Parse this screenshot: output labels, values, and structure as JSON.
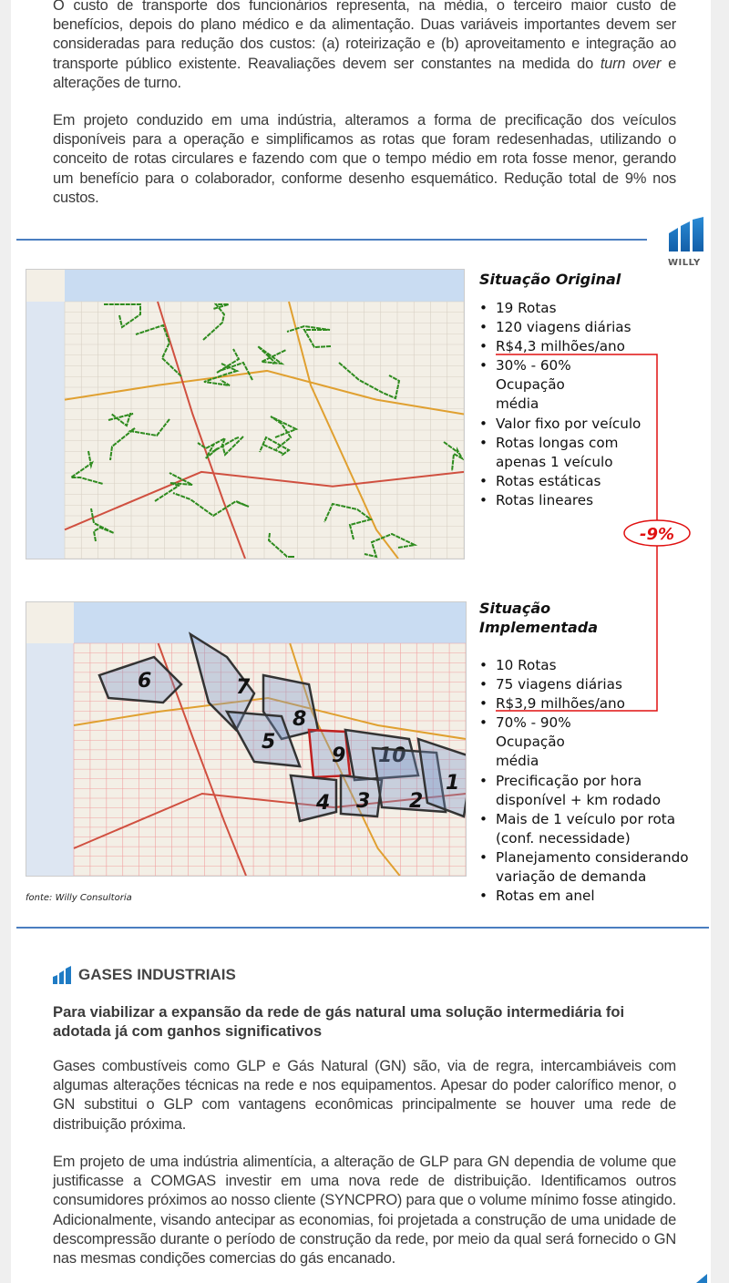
{
  "intro": {
    "p1_before": "O custo de transporte dos funcionários representa, na média, o terceiro maior custo de benefícios, depois do plano médico e da alimentação. Duas variáveis importantes devem ser consideradas para redução dos custos: (a) roteirização e (b) aproveitamento e integração ao transporte público existente. Reavaliações devem ser constantes na medida do ",
    "p1_italic": "turn over",
    "p1_after": " e alterações de turno.",
    "p2": "Em projeto conduzido em uma indústria, alteramos a forma de precificação dos veículos disponíveis para a operação e simplificamos as rotas que foram redesenhadas, utilizando o conceito de rotas circulares e fazendo com que o tempo médio em rota fosse menor, gerando um benefício para o colaborador, conforme desenho esquemático. Redução total de 9% nos custos."
  },
  "logo": {
    "text": "WILLY",
    "color": "#1f7bc4"
  },
  "original": {
    "title": "Situação Original",
    "items": [
      "19 Rotas",
      "120 viagens diárias",
      "R$4,3 milhões/ano",
      "30% - 60% Ocupação média",
      "Valor fixo por veículo",
      "Rotas longas com apenas 1 veículo",
      "Rotas estáticas",
      "Rotas lineares"
    ]
  },
  "implemented": {
    "title_line1": "Situação",
    "title_line2": "Implementada",
    "items": [
      "10 Rotas",
      "75 viagens diárias",
      "R$3,9 milhões/ano",
      "70% - 90% Ocupação média",
      "Precificação por hora disponível + km rodado",
      "Mais de 1 veículo por rota (conf. necessidade)",
      "Planejamento considerando variação de demanda",
      "Rotas em anel"
    ]
  },
  "reduction_badge": "-9%",
  "map2_route_labels": [
    "6",
    "7",
    "8",
    "5",
    "9",
    "10",
    "4",
    "3",
    "2",
    "1"
  ],
  "source": "fonte: Willy Consultoria",
  "gases": {
    "section_title": "GASES INDUSTRIAIS",
    "lead": "Para viabilizar a expansão da rede de gás natural uma solução intermediária foi adotada já com ganhos significativos",
    "p1": "Gases combustíveis como GLP e Gás Natural (GN) são, via de regra, intercambiáveis com algumas alterações técnicas na rede e nos equipamentos. Apesar do poder calorífico menor, o GN substitui o GLP com vantagens econômicas principalmente se houver uma rede de distribuição próxima.",
    "p2": "Em projeto de uma indústria alimentícia, a alteração de GLP para GN dependia de volume que justificasse a COMGAS investir em uma nova rede de distribuição. Identificamos outros consumidores próximos ao nosso cliente (SYNCPRO) para que o volume mínimo fosse atingido. Adicionalmente, visando antecipar as economias, foi projetada a construção de uma unidade de descompressão durante o período de construção da rede, por meio da qual será fornecido o GN nas mesmas condições comercias do gás encanado."
  },
  "colors": {
    "accent_blue": "#4a7ec0",
    "highlight_red": "#e01010",
    "route_green": "#2e8b1e"
  }
}
